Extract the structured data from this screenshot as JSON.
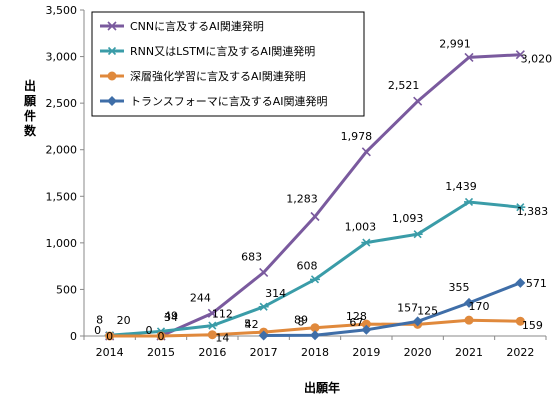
{
  "chart_data": {
    "type": "line",
    "title": "",
    "xlabel": "出願年",
    "ylabel": "出願件数",
    "x": [
      "2014",
      "2015",
      "2016",
      "2017",
      "2018",
      "2019",
      "2020",
      "2021",
      "2022"
    ],
    "ylim": [
      0,
      3500
    ],
    "yticks": [
      "0",
      "500",
      "1,000",
      "1,500",
      "2,000",
      "2,500",
      "3,000",
      "3,500"
    ],
    "legend_position": "top-left",
    "grid": false,
    "series": [
      {
        "name": "CNNに言及するAI関連発明",
        "color": "#7a5a9e",
        "marker": "x",
        "values": [
          0,
          0,
          244,
          683,
          1283,
          1978,
          2521,
          2991,
          3020
        ],
        "labels": [
          "0",
          "0",
          "244",
          "683",
          "1,283",
          "1,978",
          "2,521",
          "2,991",
          "3,020"
        ]
      },
      {
        "name": "RNN又はLSTMに言及するAI関連発明",
        "color": "#3a9ca8",
        "marker": "star",
        "values": [
          8,
          49,
          112,
          314,
          608,
          1003,
          1093,
          1439,
          1383
        ],
        "labels": [
          "8",
          "49",
          "112",
          "314",
          "608",
          "1,003",
          "1,093",
          "1,439",
          "1,383"
        ]
      },
      {
        "name": "深層強化学習に言及するAI関連発明",
        "color": "#e0893c",
        "marker": "circle",
        "values": [
          0,
          0,
          14,
          42,
          89,
          128,
          125,
          170,
          159
        ],
        "labels": [
          "0",
          "0",
          "14",
          "42",
          "89",
          "128",
          "125",
          "170",
          "159"
        ]
      },
      {
        "name": "トランスフォーマに言及するAI関連発明",
        "color": "#3f6ea8",
        "marker": "diamond",
        "values": [
          null,
          null,
          null,
          5,
          8,
          67,
          157,
          355,
          571
        ],
        "labels": [
          "",
          "",
          "",
          "5",
          "8",
          "67",
          "157",
          "355",
          "571"
        ]
      },
      {
        "name": "",
        "color": "#7a5a9e",
        "marker": "none",
        "values": [
          20,
          34,
          null,
          null,
          null,
          null,
          null,
          null,
          null
        ],
        "labels": [
          "20",
          "34",
          "",
          "",
          "",
          "",
          "",
          "",
          ""
        ]
      }
    ]
  }
}
